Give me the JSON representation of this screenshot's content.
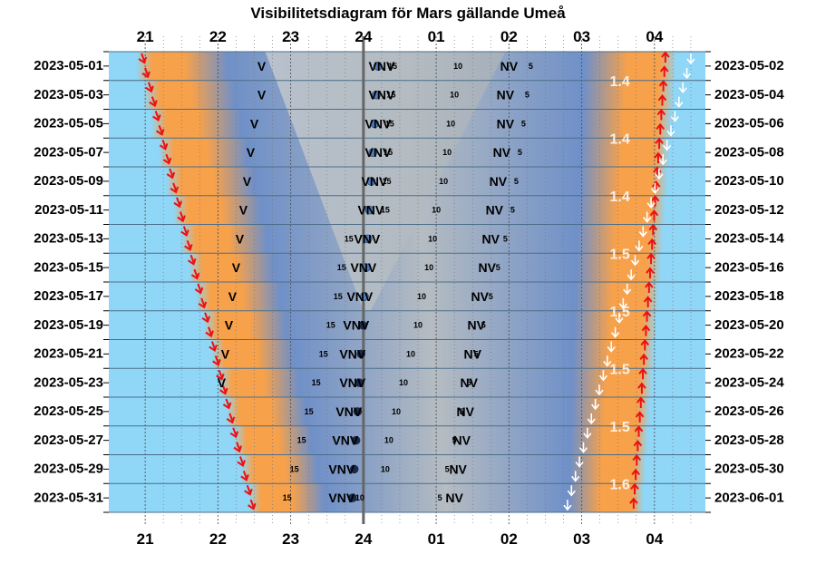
{
  "title": "Visibilitetsdiagram för Mars gällande Umeå",
  "colors": {
    "night_blue": "#8fd6f7",
    "twilight_orange": "#f7a14b",
    "deep_twilight": "#6f90c8",
    "grey_band": "#b5bcc2",
    "grid": "#4c6e8a",
    "midnight_line": "#666666",
    "sunset_arrow": "#ee1010",
    "sunrise_arrow": "#ffffff"
  },
  "chart_data": {
    "type": "visibility-diagram",
    "title": "Visibilitetsdiagram för Mars gällande Umeå",
    "x_hours": [
      "21",
      "22",
      "23",
      "24",
      "01",
      "02",
      "03",
      "04"
    ],
    "x_range": [
      20.5,
      28.7
    ],
    "left_dates": [
      "2023-05-01",
      "2023-05-03",
      "2023-05-05",
      "2023-05-07",
      "2023-05-09",
      "2023-05-11",
      "2023-05-13",
      "2023-05-15",
      "2023-05-17",
      "2023-05-19",
      "2023-05-21",
      "2023-05-23",
      "2023-05-25",
      "2023-05-27",
      "2023-05-29",
      "2023-05-31"
    ],
    "right_dates": [
      "2023-05-02",
      "2023-05-04",
      "2023-05-06",
      "2023-05-08",
      "2023-05-10",
      "2023-05-12",
      "2023-05-14",
      "2023-05-16",
      "2023-05-18",
      "2023-05-20",
      "2023-05-22",
      "2023-05-24",
      "2023-05-26",
      "2023-05-28",
      "2023-05-30",
      "2023-06-01"
    ],
    "sunset": {
      "start": 20.95,
      "end": 22.5
    },
    "sunrise": {
      "start": 28.15,
      "end": 27.7
    },
    "mars_set": {
      "start": 28.5,
      "end": 26.75
    },
    "v_labels": [
      {
        "row": 0,
        "x": 22.6,
        "text": "V"
      },
      {
        "row": 1,
        "x": 22.6,
        "text": "V"
      },
      {
        "row": 2,
        "x": 22.5,
        "text": "V"
      },
      {
        "row": 3,
        "x": 22.45,
        "text": "V"
      },
      {
        "row": 4,
        "x": 22.4,
        "text": "V"
      },
      {
        "row": 5,
        "x": 22.35,
        "text": "V"
      },
      {
        "row": 6,
        "x": 22.3,
        "text": "V"
      },
      {
        "row": 7,
        "x": 22.25,
        "text": "V"
      },
      {
        "row": 8,
        "x": 22.2,
        "text": "V"
      },
      {
        "row": 9,
        "x": 22.15,
        "text": "V"
      },
      {
        "row": 10,
        "x": 22.1,
        "text": "V"
      },
      {
        "row": 11,
        "x": 22.05,
        "text": "V"
      }
    ],
    "row_labels": [
      {
        "row": 0,
        "vnv_x": 24.25,
        "vnv": "VNV",
        "nv_x": 26.0,
        "nv": "NV",
        "a15": 24.4,
        "a10": 25.3,
        "a5": 26.3
      },
      {
        "row": 1,
        "vnv_x": 24.25,
        "vnv": "VNV",
        "nv_x": 25.95,
        "nv": "NV",
        "a15": 24.38,
        "a10": 25.25,
        "a5": 26.25
      },
      {
        "row": 2,
        "vnv_x": 24.2,
        "vnv": "VNV",
        "nv_x": 25.95,
        "nv": "NV",
        "a15": 24.36,
        "a10": 25.2,
        "a5": 26.2
      },
      {
        "row": 3,
        "vnv_x": 24.2,
        "vnv": "VNV",
        "nv_x": 25.9,
        "nv": "NV",
        "a15": 24.34,
        "a10": 25.15,
        "a5": 26.15
      },
      {
        "row": 4,
        "vnv_x": 24.15,
        "vnv": "VNV",
        "nv_x": 25.85,
        "nv": "NV",
        "a15": 24.32,
        "a10": 25.1,
        "a5": 26.1
      },
      {
        "row": 5,
        "vnv_x": 24.1,
        "vnv": "VNV",
        "nv_x": 25.8,
        "nv": "NV",
        "a15": 24.3,
        "a10": 25.0,
        "a5": 26.05
      },
      {
        "row": 6,
        "vnv_x": 24.05,
        "vnv": "VNV",
        "nv_x": 25.75,
        "nv": "NV",
        "a15": 23.8,
        "a10": 24.95,
        "a5": 25.95
      },
      {
        "row": 7,
        "vnv_x": 24.0,
        "vnv": "VNV",
        "nv_x": 25.7,
        "nv": "NV",
        "a15": 23.7,
        "a10": 24.9,
        "a5": 25.85
      },
      {
        "row": 8,
        "vnv_x": 23.95,
        "vnv": "VNV",
        "nv_x": 25.6,
        "nv": "NV",
        "a15": 23.65,
        "a10": 24.8,
        "a5": 25.75
      },
      {
        "row": 9,
        "vnv_x": 23.9,
        "vnv": "VNV",
        "nv_x": 25.55,
        "nv": "NV",
        "a15": 23.55,
        "a10": 24.75,
        "a5": 25.65
      },
      {
        "row": 10,
        "vnv_x": 23.85,
        "vnv": "VNV",
        "nv_x": 25.5,
        "nv": "NV",
        "a15": 23.45,
        "a10": 24.65,
        "a5": 25.55
      },
      {
        "row": 11,
        "vnv_x": 23.85,
        "vnv": "VNV",
        "nv_x": 25.45,
        "nv": "NV",
        "a15": 23.35,
        "a10": 24.55,
        "a5": 25.45
      },
      {
        "row": 12,
        "vnv_x": 23.8,
        "vnv": "VNV",
        "nv_x": 25.4,
        "nv": "NV",
        "a15": 23.25,
        "a10": 24.45,
        "a5": 25.35
      },
      {
        "row": 13,
        "vnv_x": 23.75,
        "vnv": "VNV",
        "nv_x": 25.35,
        "nv": "NV",
        "a15": 23.15,
        "a10": 24.35,
        "a5": 25.25
      },
      {
        "row": 14,
        "vnv_x": 23.7,
        "vnv": "VNV",
        "nv_x": 25.3,
        "nv": "NV",
        "a15": 23.05,
        "a10": 24.3,
        "a5": 25.15
      },
      {
        "row": 15,
        "vnv_x": 23.7,
        "vnv": "VNV",
        "nv_x": 25.25,
        "nv": "NV",
        "a15": 22.95,
        "a10": 23.95,
        "a5": 25.05
      }
    ],
    "mars_position": {
      "start": 24.2,
      "end": 23.85
    },
    "magnitudes": [
      {
        "row": 1,
        "text": "1.4"
      },
      {
        "row": 3,
        "text": "1.4"
      },
      {
        "row": 5,
        "text": "1.4"
      },
      {
        "row": 7,
        "text": "1.5"
      },
      {
        "row": 9,
        "text": "1.5"
      },
      {
        "row": 11,
        "text": "1.5"
      },
      {
        "row": 13,
        "text": "1.5"
      },
      {
        "row": 15,
        "text": "1.6"
      }
    ]
  }
}
